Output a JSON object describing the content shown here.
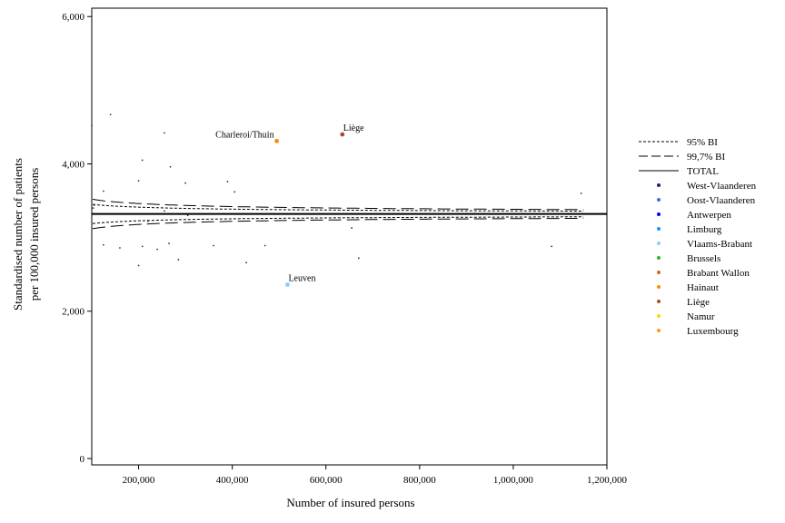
{
  "chart_data": {
    "type": "scatter",
    "subtype": "funnel-plot",
    "title": "",
    "xlabel": "Number of insured persons",
    "ylabel_lines": [
      "Standardised number of patients",
      "per 100,000 insured persons"
    ],
    "xlim": [
      100000,
      1200000
    ],
    "ylim": [
      0,
      6200
    ],
    "xticks": [
      200000,
      400000,
      600000,
      800000,
      1000000,
      1200000
    ],
    "xtick_labels": [
      "200,000",
      "400,000",
      "600,000",
      "800,000",
      "1,000,000",
      "1,200,000"
    ],
    "yticks": [
      0,
      2000,
      4000,
      6000
    ],
    "ytick_labels": [
      "0",
      "2,000",
      "4,000",
      "6,000"
    ],
    "grid": false,
    "legend_position": "right",
    "total": 3320,
    "limits": [
      {
        "name": "95% BI",
        "style": "dotted",
        "z": 1.96
      },
      {
        "name": "99,7% BI",
        "style": "dashed",
        "z": 3.0
      }
    ],
    "total_label": "TOTAL",
    "provinces": [
      {
        "name": "West-Vlaanderen",
        "color": "#1a237e"
      },
      {
        "name": "Oost-Vlaanderen",
        "color": "#4169e1"
      },
      {
        "name": "Antwerpen",
        "color": "#0000ff"
      },
      {
        "name": "Limburg",
        "color": "#1e90ff"
      },
      {
        "name": "Vlaams-Brabant",
        "color": "#87cefa"
      },
      {
        "name": "Brussels",
        "color": "#2eb82e"
      },
      {
        "name": "Brabant Wallon",
        "color": "#d2691e"
      },
      {
        "name": "Hainaut",
        "color": "#ff8c00"
      },
      {
        "name": "Liège",
        "color": "#a0522d"
      },
      {
        "name": "Namur",
        "color": "#ffd700"
      },
      {
        "name": "Luxembourg",
        "color": "#f0a020"
      }
    ],
    "points": [
      {
        "x": 100000,
        "y": 4520
      },
      {
        "x": 105000,
        "y": 3440
      },
      {
        "x": 103000,
        "y": 3400
      },
      {
        "x": 125000,
        "y": 3630
      },
      {
        "x": 140000,
        "y": 4670
      },
      {
        "x": 125000,
        "y": 2900
      },
      {
        "x": 160000,
        "y": 2860
      },
      {
        "x": 200000,
        "y": 3770
      },
      {
        "x": 200000,
        "y": 2620
      },
      {
        "x": 208000,
        "y": 4050
      },
      {
        "x": 208000,
        "y": 2880
      },
      {
        "x": 220000,
        "y": 3220
      },
      {
        "x": 240000,
        "y": 2840
      },
      {
        "x": 255000,
        "y": 4420
      },
      {
        "x": 255000,
        "y": 3360
      },
      {
        "x": 265000,
        "y": 2920
      },
      {
        "x": 268000,
        "y": 3960
      },
      {
        "x": 285000,
        "y": 2700
      },
      {
        "x": 300000,
        "y": 3740
      },
      {
        "x": 305000,
        "y": 3300
      },
      {
        "x": 360000,
        "y": 2890
      },
      {
        "x": 390000,
        "y": 3760
      },
      {
        "x": 405000,
        "y": 3620
      },
      {
        "x": 430000,
        "y": 2660
      },
      {
        "x": 470000,
        "y": 2890
      },
      {
        "x": 655000,
        "y": 3130
      },
      {
        "x": 670000,
        "y": 2720
      },
      {
        "x": 1082000,
        "y": 2880
      },
      {
        "x": 1145000,
        "y": 3600
      },
      {
        "x": 495000,
        "y": 4310,
        "label": "Charleroi/Thuin",
        "province": "Hainaut"
      },
      {
        "x": 635000,
        "y": 4400,
        "label": "Liège",
        "province": "Liège"
      },
      {
        "x": 518000,
        "y": 2360,
        "label": "Leuven",
        "province": "Vlaams-Brabant"
      }
    ]
  }
}
